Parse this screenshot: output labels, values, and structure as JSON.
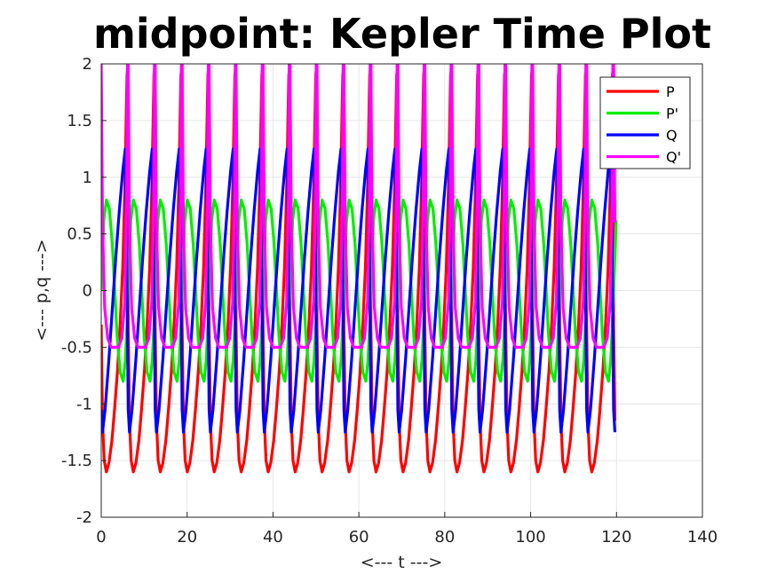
{
  "chart_data": {
    "type": "line",
    "title": "midpoint: Kepler Time Plot",
    "xlabel": "<---  t  --->",
    "ylabel": "<---  p,q  --->",
    "xlim": [
      0,
      140
    ],
    "ylim": [
      -2,
      2
    ],
    "grid": true,
    "xticks": [
      "0",
      "20",
      "40",
      "60",
      "80",
      "100",
      "120",
      "140"
    ],
    "yticks": [
      "-2",
      "-1.5",
      "-1",
      "-0.5",
      "0",
      "0.5",
      "1",
      "1.5",
      "2"
    ],
    "legend_position": "top-right",
    "period": 6.28,
    "t_range": [
      0,
      120
    ],
    "series": [
      {
        "name": "P",
        "color": "#ff0000",
        "x": [
          0,
          0.3,
          0.7,
          1.2,
          1.8,
          2.5,
          3.1,
          3.8,
          4.4,
          5.0,
          5.5,
          6.0,
          6.28
        ],
        "y": [
          -0.3,
          -1.15,
          -1.5,
          -1.6,
          -1.52,
          -1.32,
          -1.05,
          -0.7,
          -0.3,
          0.2,
          0.9,
          1.9,
          2.0
        ]
      },
      {
        "name": "P'",
        "color": "#00ee00",
        "x": [
          0,
          0.6,
          1.2,
          1.9,
          2.6,
          3.14,
          3.7,
          4.4,
          5.1,
          5.6,
          6.0,
          6.28
        ],
        "y": [
          0.0,
          0.62,
          0.8,
          0.72,
          0.4,
          0.0,
          -0.4,
          -0.72,
          -0.8,
          -0.62,
          -0.3,
          0.0
        ]
      },
      {
        "name": "Q",
        "color": "#0000ff",
        "x": [
          0,
          0.3,
          0.9,
          1.8,
          2.6,
          3.4,
          4.2,
          5.0,
          5.6,
          5.95,
          6.28
        ],
        "y": [
          -1.05,
          -1.25,
          -1.05,
          -0.6,
          -0.15,
          0.3,
          0.7,
          1.05,
          1.25,
          0.3,
          -1.05
        ]
      },
      {
        "name": "Q'",
        "color": "#ff00ff",
        "x": [
          0,
          0.3,
          0.8,
          1.5,
          2.3,
          3.14,
          4.0,
          4.8,
          5.5,
          5.9,
          6.1,
          6.28
        ],
        "y": [
          2.0,
          0.6,
          -0.15,
          -0.42,
          -0.5,
          -0.5,
          -0.5,
          -0.42,
          -0.1,
          0.8,
          2.0,
          2.0
        ]
      }
    ]
  }
}
